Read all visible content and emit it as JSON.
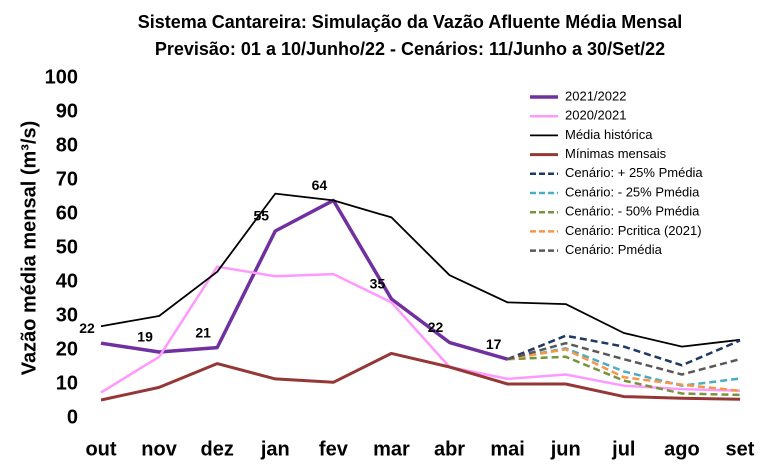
{
  "chart_data": {
    "type": "line",
    "title": "Sistema Cantareira: Simulação da Vazão Afluente Média Mensal",
    "subtitle": "Previsão: 01 a 10/Junho/22 - Cenários: 11/Junho a 30/Set/22",
    "y_label": "Vazão média mensal (m³/s)",
    "categories": [
      "out",
      "nov",
      "dez",
      "jan",
      "fev",
      "mar",
      "abr",
      "mai",
      "jun",
      "jul",
      "ago",
      "set"
    ],
    "ylim": [
      0,
      100
    ],
    "yticks": [
      0,
      10,
      20,
      30,
      40,
      50,
      60,
      70,
      80,
      90,
      100
    ],
    "legend": "top-right",
    "series": [
      {
        "name": "2021/2022",
        "color": "#7030a0",
        "dash": false,
        "width": 3.5,
        "values": [
          22,
          19.4,
          20.7,
          55,
          64,
          35,
          22.2,
          17.3,
          null,
          null,
          null,
          null
        ],
        "value_labels": [
          "22",
          "19",
          "21",
          "55",
          "64",
          "35",
          "22",
          "17",
          null,
          null,
          null,
          null
        ]
      },
      {
        "name": "2020/2021",
        "color": "#ff99ff",
        "dash": false,
        "width": 2.5,
        "values": [
          7.5,
          18,
          44.5,
          41.7,
          42.3,
          34,
          15,
          11.5,
          12.8,
          9.5,
          8.5,
          8
        ]
      },
      {
        "name": "Média histórica",
        "color": "#000000",
        "dash": false,
        "width": 1.8,
        "values": [
          27,
          30,
          43,
          66,
          64,
          59,
          42,
          34,
          33.5,
          25,
          21,
          23
        ]
      },
      {
        "name": "Mínimas mensais",
        "color": "#953735",
        "dash": false,
        "width": 3,
        "values": [
          5.3,
          9,
          16,
          11.5,
          10.5,
          19,
          15,
          10,
          10,
          6.3,
          5.8,
          5.5
        ]
      },
      {
        "name": "Cenário: + 25% Pmédia",
        "color": "#1f3864",
        "dash": true,
        "width": 2.5,
        "values": [
          null,
          null,
          null,
          null,
          null,
          null,
          null,
          17.3,
          24.2,
          21,
          15.5,
          22.8
        ]
      },
      {
        "name": "Cenário: - 25% Pmédia",
        "color": "#4bacc6",
        "dash": true,
        "width": 2.5,
        "values": [
          null,
          null,
          null,
          null,
          null,
          null,
          null,
          17.3,
          20.5,
          13.7,
          9.5,
          11.6
        ]
      },
      {
        "name": "Cenário: - 50% Pmédia",
        "color": "#77933c",
        "dash": true,
        "width": 2.5,
        "values": [
          null,
          null,
          null,
          null,
          null,
          null,
          null,
          17.3,
          18,
          11,
          7.2,
          6.8
        ]
      },
      {
        "name": "Cenário: Pcritica (2021)",
        "color": "#f79646",
        "dash": true,
        "width": 2.5,
        "values": [
          null,
          null,
          null,
          null,
          null,
          null,
          null,
          17.3,
          20.2,
          12,
          9.8,
          8
        ]
      },
      {
        "name": "Cenário: Pmédia",
        "color": "#595959",
        "dash": true,
        "width": 2.5,
        "values": [
          null,
          null,
          null,
          null,
          null,
          null,
          null,
          17.3,
          22,
          17.3,
          12.8,
          17.3
        ]
      }
    ]
  }
}
